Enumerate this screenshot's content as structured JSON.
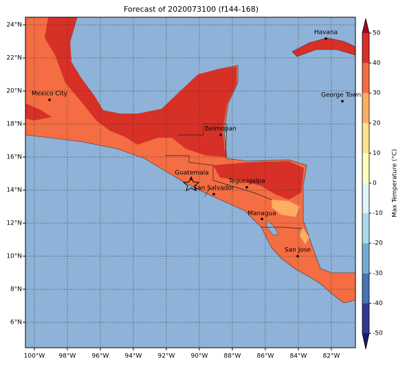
{
  "map": {
    "title": "Forecast of 2020073100 (f144-168)",
    "xlim": [
      -100.54,
      -80.54
    ],
    "ylim": [
      4.46,
      24.46
    ],
    "xticks": [
      {
        "value": -100,
        "label": "100°W"
      },
      {
        "value": -98,
        "label": "98°W"
      },
      {
        "value": -96,
        "label": "96°W"
      },
      {
        "value": -94,
        "label": "94°W"
      },
      {
        "value": -92,
        "label": "92°W"
      },
      {
        "value": -90,
        "label": "90°W"
      },
      {
        "value": -88,
        "label": "88°W"
      },
      {
        "value": -86,
        "label": "86°W"
      },
      {
        "value": -84,
        "label": "84°W"
      },
      {
        "value": -82,
        "label": "82°W"
      }
    ],
    "yticks": [
      {
        "value": 6,
        "label": "6°N"
      },
      {
        "value": 8,
        "label": "8°N"
      },
      {
        "value": 10,
        "label": "10°N"
      },
      {
        "value": 12,
        "label": "12°N"
      },
      {
        "value": 14,
        "label": "14°N"
      },
      {
        "value": 16,
        "label": "16°N"
      },
      {
        "value": 18,
        "label": "18°N"
      },
      {
        "value": 20,
        "label": "20°N"
      },
      {
        "value": 22,
        "label": "22°N"
      },
      {
        "value": 24,
        "label": "24°N"
      }
    ],
    "grid": true,
    "cities": [
      "Havana",
      "Mexico City",
      "George Town",
      "Belmopan",
      "Guatemala",
      "Tegucigalpa",
      "San Salvador",
      "Managua",
      "San Jose"
    ],
    "colorbar": {
      "label": "Max Temperature (°C)",
      "lim": [
        -50,
        50
      ],
      "ticks": [
        -50,
        -40,
        -30,
        -20,
        -10,
        0,
        10,
        20,
        30,
        40,
        50
      ],
      "colors": [
        "#313695",
        "#4575b4",
        "#74add1",
        "#abd9e9",
        "#e0f3f8",
        "#ffffbf",
        "#fee090",
        "#fdae61",
        "#f46d43",
        "#d73027"
      ],
      "under_color": "#1a1a6e",
      "over_color": "#a50026"
    }
  }
}
